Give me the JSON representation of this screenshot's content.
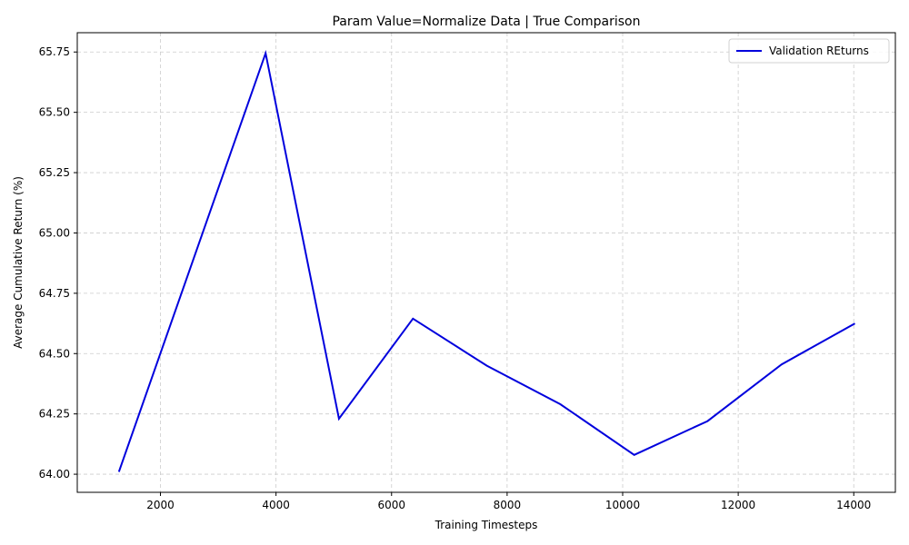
{
  "chart_data": {
    "type": "line",
    "title": "Param Value=Normalize Data | True Comparison",
    "xlabel": "Training Timesteps",
    "ylabel": "Average Cumulative Return (%)",
    "xlim": [
      560,
      14720
    ],
    "ylim": [
      63.925,
      65.83
    ],
    "xticks": [
      2000,
      4000,
      6000,
      8000,
      10000,
      12000,
      14000
    ],
    "xtick_labels": [
      "2000",
      "4000",
      "6000",
      "8000",
      "10000",
      "12000",
      "14000"
    ],
    "yticks": [
      64.0,
      64.25,
      64.5,
      64.75,
      65.0,
      65.25,
      65.5,
      65.75
    ],
    "ytick_labels": [
      "64.00",
      "64.25",
      "64.50",
      "64.75",
      "65.00",
      "65.25",
      "65.50",
      "65.75"
    ],
    "grid": true,
    "legend_position": "top-right",
    "series": [
      {
        "name": "Validation REturns",
        "color": "#0000dd",
        "x": [
          1280,
          3820,
          5090,
          6370,
          7650,
          8920,
          10200,
          11470,
          12750,
          14020
        ],
        "y": [
          64.01,
          65.745,
          64.23,
          64.645,
          64.45,
          64.29,
          64.08,
          64.22,
          64.455,
          64.625
        ]
      }
    ]
  }
}
